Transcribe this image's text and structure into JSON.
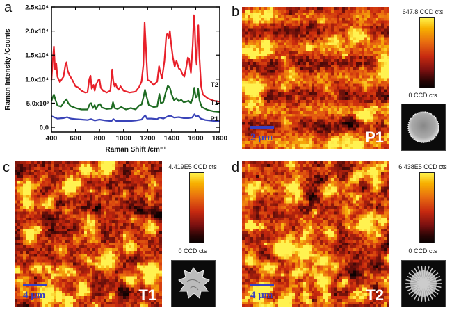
{
  "panels": {
    "a": {
      "letter": "a"
    },
    "b": {
      "letter": "b",
      "label": "P1",
      "scale": "2 μm",
      "cbar_max": "647.8 CCD cts",
      "cbar_min": "0 CCD cts"
    },
    "c": {
      "letter": "c",
      "label": "T1",
      "scale": "4 μm",
      "cbar_max": "4.419E5 CCD cts",
      "cbar_min": "0 CCD cts"
    },
    "d": {
      "letter": "d",
      "label": "T2",
      "scale": "4 μm",
      "cbar_max": "6.438E5 CCD cts",
      "cbar_min": "0 CCD cts"
    }
  },
  "colors": {
    "T2": "#e8202a",
    "T1": "#1e6b22",
    "P1": "#3a44b8",
    "scalebar": "#3a3fc0"
  },
  "chart_data": {
    "type": "line",
    "title": "",
    "xlabel": "Raman Shift /cm⁻¹",
    "ylabel": "Raman Intensity /Counts",
    "xlim": [
      400,
      1800
    ],
    "ylim": [
      -1000,
      25000
    ],
    "xticks": [
      "400",
      "600",
      "800",
      "1000",
      "1200",
      "1400",
      "1600",
      "1800"
    ],
    "yticks": [
      {
        "value": 0,
        "label": "0.0"
      },
      {
        "value": 5000,
        "label": "5.0x10³"
      },
      {
        "value": 10000,
        "label": "1.0x10⁴"
      },
      {
        "value": 15000,
        "label": "1.5x10⁴"
      },
      {
        "value": 20000,
        "label": "2.0x10⁴"
      },
      {
        "value": 25000,
        "label": "2.5x10⁴"
      }
    ],
    "legend_placement": "inline-right",
    "series": [
      {
        "name": "T2",
        "x": [
          400,
          410,
          420,
          430,
          440,
          450,
          470,
          500,
          515,
          525,
          535,
          550,
          570,
          600,
          620,
          650,
          680,
          700,
          715,
          725,
          735,
          750,
          760,
          770,
          790,
          800,
          810,
          830,
          860,
          890,
          905,
          915,
          925,
          935,
          945,
          960,
          975,
          1000,
          1050,
          1100,
          1130,
          1150,
          1165,
          1175,
          1185,
          1200,
          1220,
          1250,
          1280,
          1295,
          1305,
          1320,
          1340,
          1355,
          1365,
          1375,
          1385,
          1395,
          1410,
          1425,
          1440,
          1450,
          1460,
          1475,
          1490,
          1505,
          1520,
          1535,
          1545,
          1560,
          1575,
          1585,
          1592,
          1600,
          1608,
          1615,
          1622,
          1630,
          1645,
          1660,
          1700,
          1750,
          1800
        ],
        "y": [
          9800,
          13500,
          16800,
          12000,
          13300,
          10500,
          9400,
          10500,
          12800,
          13500,
          11800,
          10800,
          10000,
          8500,
          8300,
          7600,
          7200,
          7300,
          10000,
          10700,
          8000,
          8800,
          7600,
          8800,
          9800,
          9900,
          8200,
          7600,
          7200,
          7600,
          12000,
          9500,
          8500,
          9000,
          8200,
          7800,
          8500,
          7600,
          7200,
          7400,
          8400,
          9500,
          13000,
          21800,
          17000,
          9800,
          9600,
          8800,
          9500,
          12700,
          11500,
          10200,
          13800,
          19000,
          19500,
          18500,
          20000,
          17500,
          14500,
          12600,
          13800,
          13000,
          12200,
          12000,
          11000,
          10500,
          12300,
          14500,
          14200,
          11300,
          17000,
          23300,
          21000,
          15000,
          13000,
          19000,
          21200,
          15000,
          8500,
          6800,
          6000,
          5500,
          5300
        ]
      },
      {
        "name": "T1",
        "x": [
          400,
          410,
          420,
          435,
          450,
          480,
          510,
          525,
          540,
          560,
          600,
          650,
          700,
          720,
          730,
          745,
          760,
          770,
          790,
          805,
          820,
          860,
          900,
          912,
          925,
          950,
          980,
          1020,
          1060,
          1100,
          1130,
          1150,
          1165,
          1178,
          1190,
          1210,
          1250,
          1280,
          1298,
          1310,
          1330,
          1350,
          1368,
          1385,
          1400,
          1420,
          1440,
          1460,
          1480,
          1500,
          1520,
          1540,
          1560,
          1575,
          1588,
          1600,
          1610,
          1620,
          1632,
          1650,
          1700,
          1750,
          1800
        ],
        "y": [
          5400,
          6200,
          6800,
          5600,
          4500,
          4300,
          5400,
          5800,
          5000,
          4400,
          4000,
          3700,
          3700,
          4900,
          5000,
          4000,
          4600,
          3800,
          4600,
          4800,
          4100,
          3800,
          3900,
          5200,
          4000,
          3800,
          4200,
          3700,
          4000,
          3700,
          4500,
          4700,
          6200,
          7800,
          6500,
          4600,
          4200,
          4300,
          6900,
          5000,
          5200,
          7200,
          8600,
          8200,
          6800,
          5600,
          6000,
          5400,
          5700,
          5200,
          5300,
          5500,
          5000,
          6000,
          8200,
          6200,
          6300,
          8000,
          5500,
          4200,
          3600,
          3300,
          3200
        ]
      },
      {
        "name": "P1",
        "x": [
          400,
          420,
          450,
          500,
          530,
          560,
          600,
          650,
          700,
          730,
          760,
          800,
          850,
          900,
          915,
          940,
          1000,
          1050,
          1100,
          1150,
          1170,
          1180,
          1195,
          1230,
          1280,
          1300,
          1330,
          1370,
          1390,
          1420,
          1460,
          1500,
          1540,
          1570,
          1590,
          1605,
          1620,
          1640,
          1680,
          1720,
          1760,
          1800
        ],
        "y": [
          2300,
          2100,
          1800,
          1900,
          2100,
          1800,
          1700,
          1600,
          1500,
          1700,
          1400,
          1600,
          1400,
          1300,
          1700,
          1300,
          1300,
          1300,
          1400,
          1600,
          2200,
          2500,
          1800,
          1800,
          1700,
          2000,
          1800,
          2300,
          2400,
          2000,
          2100,
          1900,
          1900,
          2000,
          2700,
          2200,
          2400,
          1800,
          1500,
          1400,
          1300,
          1300
        ]
      }
    ]
  }
}
